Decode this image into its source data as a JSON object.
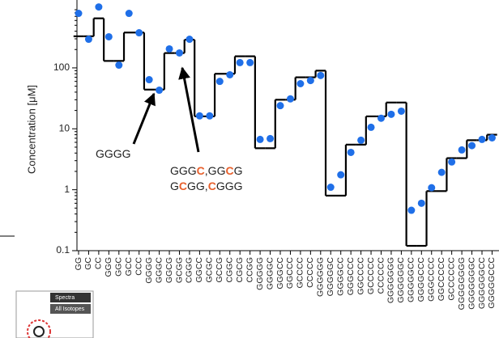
{
  "chart_data": {
    "type": "scatter-step",
    "y_label": "Concentration [μM]",
    "categories": [
      "GG",
      "GC",
      "CC",
      "GGG",
      "GGC",
      "GCC",
      "CCC",
      "GGGG",
      "GGGC",
      "GGCG",
      "GCGG",
      "CGGG",
      "GGCC",
      "GCGC",
      "GCCG",
      "CGGC",
      "CGCG",
      "CCGG",
      "GGGGG",
      "GGGGC",
      "GGGCC",
      "GGCCC",
      "GCCCC",
      "CCCCC",
      "GGGGGG",
      "GGGGGC",
      "GGGGCC",
      "GGGCCC",
      "GGCCCC",
      "GCCCCC",
      "CCCCCC",
      "GGGGGGG",
      "GGGGGGC",
      "GGGGGCC",
      "GGGGCCC",
      "GGGCCCC",
      "GGCCCCC",
      "GCCCCCC",
      "GGGGGGGG",
      "GGGGGGGC",
      "GGGGGGCC",
      "GGGGGCCC"
    ],
    "series": [
      {
        "color": "#1f6fe8",
        "values": [
          784,
          295,
          1000,
          324,
          111,
          784,
          377,
          64,
          43,
          205,
          176,
          295,
          16.3,
          16.3,
          60,
          77,
          122,
          122,
          6.7,
          6.9,
          24,
          31,
          55,
          62,
          75,
          1.1,
          1.76,
          4.1,
          6.5,
          10.6,
          14.9,
          17.3,
          19.5,
          0.46,
          0.6,
          1.08,
          1.93,
          2.86,
          4.5,
          5.3,
          6.7,
          7.1
        ]
      },
      {
        "color": "#000000",
        "values": [
          330,
          330,
          650,
          130,
          130,
          380,
          380,
          44,
          44,
          175,
          175,
          290,
          16,
          16,
          80,
          80,
          155,
          155,
          4.8,
          4.8,
          30,
          30,
          70,
          70,
          90,
          0.8,
          0.8,
          5.5,
          5.5,
          16,
          16,
          27,
          27,
          0.12,
          0.12,
          0.95,
          0.95,
          3.3,
          3.3,
          6.5,
          6.5,
          8
        ]
      }
    ],
    "ylim": [
      0.1,
      1300
    ],
    "yticks": [
      0.1,
      1,
      10,
      100
    ],
    "log_y": true,
    "annotations": [
      {
        "lines": [
          [
            {
              "text": "GGGG"
            }
          ]
        ]
      },
      {
        "lines": [
          [
            {
              "text": "GGG"
            },
            {
              "text": "C",
              "color": "#e8602c"
            },
            {
              "text": ",GG"
            },
            {
              "text": "C",
              "color": "#e8602c"
            },
            {
              "text": "G"
            }
          ],
          [
            {
              "text": "G"
            },
            {
              "text": "C",
              "color": "#e8602c"
            },
            {
              "text": "GG,"
            },
            {
              "text": "C",
              "color": "#e8602c"
            },
            {
              "text": "GGG"
            }
          ]
        ]
      }
    ],
    "inset": {
      "title": "Spectra",
      "subtitle": "All Isotopes"
    }
  }
}
